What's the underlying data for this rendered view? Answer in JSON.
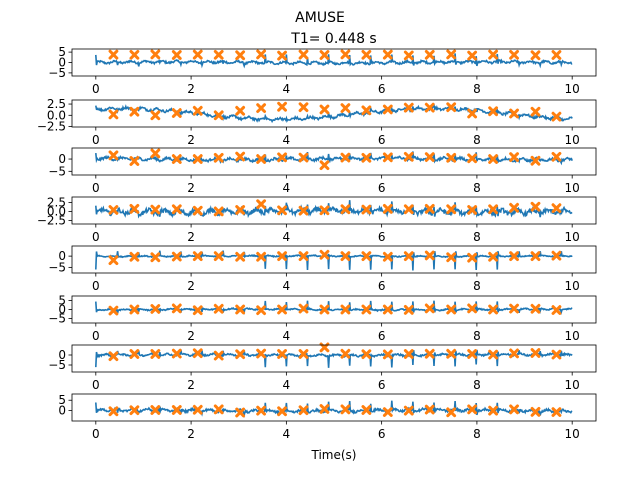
{
  "figure": {
    "suptitle": "AMUSE",
    "subtitle": "T1= 0.448 s",
    "xlabel": "Time(s)"
  },
  "chart_data": {
    "type": "line",
    "title": "AMUSE",
    "subtitle": "T1= 0.448 s",
    "xlabel": "Time(s)",
    "xlim": [
      -0.5,
      10.5
    ],
    "xticks": [
      0,
      2,
      4,
      6,
      8,
      10
    ],
    "grid": false,
    "signal_color": "#1f77b4",
    "marker_color": "#ff7f0e",
    "marker_shape": "x",
    "marker_times": [
      0.37,
      0.81,
      1.25,
      1.7,
      2.14,
      2.58,
      3.03,
      3.47,
      3.91,
      4.36,
      4.8,
      5.24,
      5.68,
      6.13,
      6.57,
      7.01,
      7.46,
      7.9,
      8.34,
      8.78,
      9.23,
      9.67
    ],
    "subplots": [
      {
        "name": "",
        "ylim": [
          -6.5,
          6.5
        ],
        "yticks": [
          5,
          0,
          -5
        ],
        "ytick_labels": [
          "5",
          "0",
          "−5"
        ],
        "base": 0,
        "amp": 0.9,
        "spike": 3.5,
        "drift": 0.3,
        "marker_y": [
          3.8,
          3.7,
          3.9,
          3.6,
          3.8,
          3.7,
          3.5,
          3.9,
          3.3,
          3.8,
          3.6,
          3.9,
          3.7,
          3.8,
          3.4,
          3.7,
          3.9,
          3.3,
          3.8,
          3.7,
          3.5,
          3.6
        ]
      },
      {
        "name": "",
        "ylim": [
          -2.6,
          3.4
        ],
        "yticks": [
          2.5,
          0.0,
          -2.5
        ],
        "ytick_labels": [
          "2.5",
          "0.0",
          "−2.5"
        ],
        "base": 0.3,
        "amp": 0.5,
        "spike": 0.6,
        "drift": 1.2,
        "marker_y": [
          0.2,
          0.8,
          0.0,
          0.5,
          1.0,
          0.0,
          1.0,
          1.6,
          1.9,
          1.8,
          1.3,
          1.6,
          1.1,
          1.3,
          1.7,
          1.7,
          1.8,
          0.4,
          0.9,
          0.4,
          0.8,
          -0.3
        ]
      },
      {
        "name": "",
        "ylim": [
          -6.5,
          4.5
        ],
        "yticks": [
          0,
          -5
        ],
        "ytick_labels": [
          "0",
          "−5"
        ],
        "base": 0,
        "amp": 0.9,
        "spike": 2.0,
        "drift": 0.3,
        "marker_y": [
          1.5,
          -0.8,
          2.3,
          0.0,
          0.0,
          0.5,
          1.0,
          0.0,
          0.7,
          0.6,
          -2.5,
          0.6,
          0.5,
          0.7,
          0.9,
          0.8,
          0.5,
          0.3,
          0.0,
          0.8,
          -0.7,
          0.9
        ]
      },
      {
        "name": "",
        "ylim": [
          -3.5,
          4.0
        ],
        "yticks": [
          2.5,
          0.0,
          -2.5
        ],
        "ytick_labels": [
          "2.5",
          "0.0",
          "−2.5"
        ],
        "base": 0,
        "amp": 1.1,
        "spike": 2.0,
        "drift": 0.2,
        "marker_y": [
          0.4,
          0.7,
          0.5,
          0.6,
          0.2,
          0.0,
          0.4,
          2.0,
          0.3,
          0.2,
          0.3,
          0.6,
          0.5,
          0.7,
          0.6,
          0.7,
          0.6,
          0.4,
          0.6,
          1.0,
          1.3,
          0.9
        ]
      },
      {
        "name": "",
        "ylim": [
          -7.5,
          4.5
        ],
        "yticks": [
          0,
          -5
        ],
        "ytick_labels": [
          "0",
          "−5"
        ],
        "base": 0,
        "amp": 0.4,
        "spike": -6.0,
        "drift": 0.1,
        "marker_y": [
          -1.8,
          -0.3,
          -0.5,
          -0.2,
          0.0,
          0.0,
          -0.3,
          -0.3,
          0.0,
          0.0,
          0.6,
          0.0,
          0.0,
          -0.3,
          0.0,
          0.3,
          -0.5,
          -0.7,
          -0.3,
          0.0,
          0.0,
          0.2
        ]
      },
      {
        "name": "",
        "ylim": [
          -7.5,
          7.5
        ],
        "yticks": [
          5,
          0,
          -5
        ],
        "ytick_labels": [
          "5",
          "0",
          "−5"
        ],
        "base": 0,
        "amp": 0.6,
        "spike": 4.5,
        "drift": 0.2,
        "marker_y": [
          -0.6,
          0.0,
          0.3,
          0.6,
          -0.4,
          0.4,
          0.0,
          -0.4,
          0.0,
          0.5,
          0.0,
          0.0,
          0.0,
          0.0,
          -0.2,
          0.6,
          0.0,
          0.6,
          0.0,
          0.5,
          0.4,
          -0.3
        ]
      },
      {
        "name": "",
        "ylim": [
          -8.5,
          5.0
        ],
        "yticks": [
          0,
          -5
        ],
        "ytick_labels": [
          "0",
          "−5"
        ],
        "base": 0,
        "amp": 0.8,
        "spike": -5.5,
        "drift": 0.2,
        "marker_y": [
          -0.6,
          0.5,
          0.5,
          0.7,
          0.9,
          -0.3,
          0.4,
          0.7,
          0.5,
          0.5,
          3.8,
          0.6,
          0.4,
          0.3,
          0.5,
          0.6,
          0.6,
          0.5,
          0.2,
          0.8,
          1.0,
          0.2
        ]
      },
      {
        "name": "",
        "ylim": [
          -5.0,
          8.0
        ],
        "yticks": [
          5,
          0
        ],
        "ytick_labels": [
          "5",
          "0"
        ],
        "base": 0,
        "amp": 1.0,
        "spike": 4.0,
        "drift": 0.3,
        "marker_y": [
          -0.3,
          0.2,
          0.3,
          0.3,
          0.4,
          0.6,
          -0.9,
          0.0,
          -0.3,
          0.2,
          0.8,
          0.6,
          0.3,
          -0.7,
          0.0,
          0.5,
          -0.8,
          0.6,
          0.0,
          0.6,
          -0.6,
          -0.7
        ]
      }
    ]
  }
}
